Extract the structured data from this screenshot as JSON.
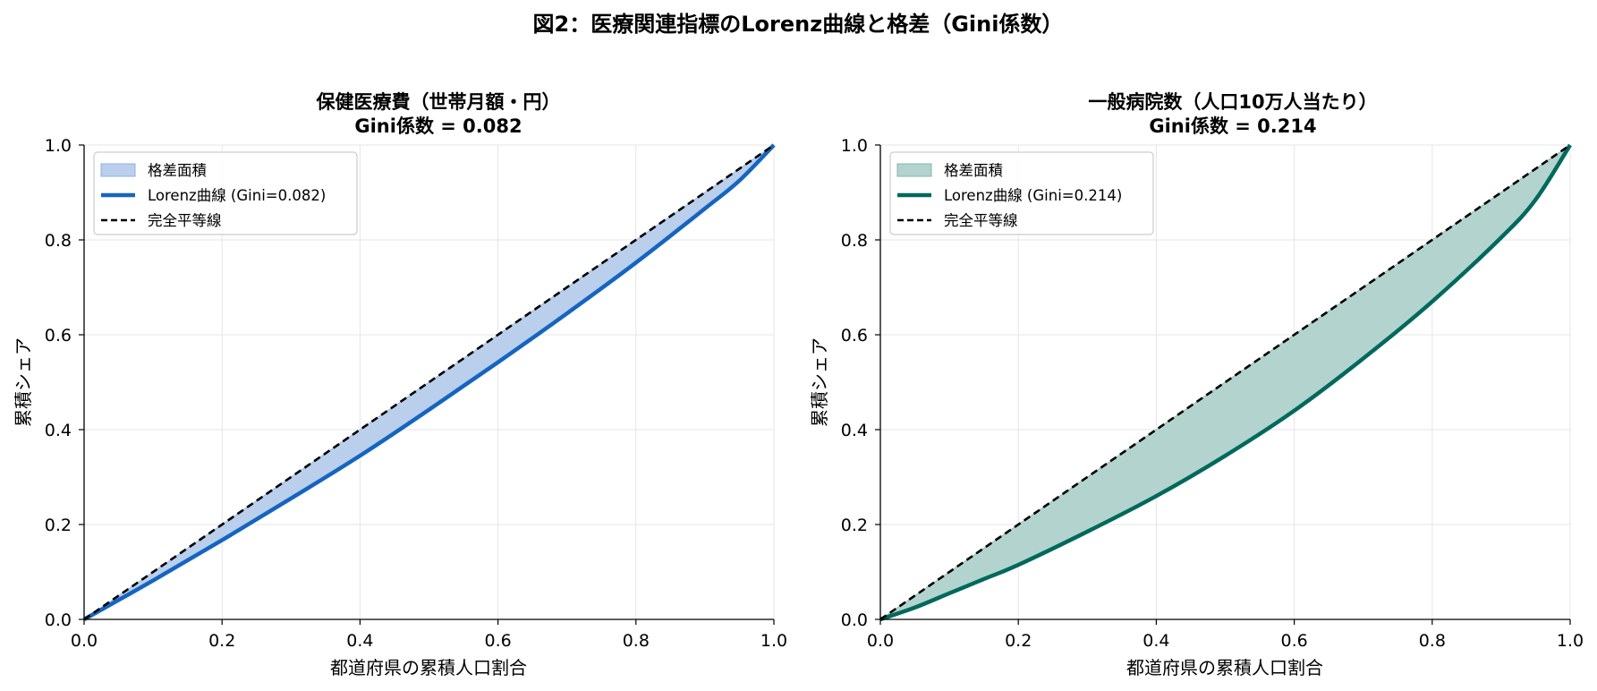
{
  "figure": {
    "title": "図2：医療関連指標のLorenz曲線と格差（Gini係数）"
  },
  "chart_data": [
    {
      "type": "area",
      "title": "保健医療費（世帯月額・円）",
      "subtitle": "Gini係数 = 0.082",
      "xlabel": "都道府県の累積人口割合",
      "ylabel": "累積シェア",
      "xlim": [
        0.0,
        1.0
      ],
      "ylim": [
        0.0,
        1.0
      ],
      "xticks": [
        "0.0",
        "0.2",
        "0.4",
        "0.6",
        "0.8",
        "1.0"
      ],
      "yticks": [
        "0.0",
        "0.2",
        "0.4",
        "0.6",
        "0.8",
        "1.0"
      ],
      "grid": true,
      "legend_position": "upper-left",
      "gini": 0.082,
      "colors": {
        "line": "#1565c0",
        "fill": "#b9cfec",
        "fill_edge": "#8fb0df",
        "equality": "#000000"
      },
      "legend": [
        {
          "kind": "fill",
          "label": "格差面積"
        },
        {
          "kind": "line",
          "label": "Lorenz曲線 (Gini=0.082)"
        },
        {
          "kind": "dash",
          "label": "完全平等線"
        }
      ],
      "series": [
        {
          "name": "Lorenz曲線 (Gini=0.082)",
          "x": [
            0.0,
            0.1,
            0.2,
            0.3,
            0.4,
            0.5,
            0.6,
            0.7,
            0.8,
            0.9,
            0.95,
            1.0
          ],
          "y": [
            0.0,
            0.082,
            0.167,
            0.255,
            0.345,
            0.442,
            0.542,
            0.645,
            0.752,
            0.866,
            0.925,
            1.0
          ]
        },
        {
          "name": "完全平等線",
          "x": [
            0.0,
            1.0
          ],
          "y": [
            0.0,
            1.0
          ]
        }
      ]
    },
    {
      "type": "area",
      "title": "一般病院数（人口10万人当たり）",
      "subtitle": "Gini係数 = 0.214",
      "xlabel": "都道府県の累積人口割合",
      "ylabel": "累積シェア",
      "xlim": [
        0.0,
        1.0
      ],
      "ylim": [
        0.0,
        1.0
      ],
      "xticks": [
        "0.0",
        "0.2",
        "0.4",
        "0.6",
        "0.8",
        "1.0"
      ],
      "yticks": [
        "0.0",
        "0.2",
        "0.4",
        "0.6",
        "0.8",
        "1.0"
      ],
      "grid": true,
      "legend_position": "upper-left",
      "gini": 0.214,
      "colors": {
        "line": "#00695c",
        "fill": "#b3d4ce",
        "fill_edge": "#87b5ad",
        "equality": "#000000"
      },
      "legend": [
        {
          "kind": "fill",
          "label": "格差面積"
        },
        {
          "kind": "line",
          "label": "Lorenz曲線 (Gini=0.214)"
        },
        {
          "kind": "dash",
          "label": "完全平等線"
        }
      ],
      "series": [
        {
          "name": "Lorenz曲線 (Gini=0.214)",
          "x": [
            0.0,
            0.05,
            0.1,
            0.15,
            0.2,
            0.3,
            0.4,
            0.5,
            0.6,
            0.7,
            0.8,
            0.9,
            0.95,
            1.0
          ],
          "y": [
            0.0,
            0.025,
            0.055,
            0.085,
            0.115,
            0.185,
            0.26,
            0.345,
            0.44,
            0.55,
            0.67,
            0.805,
            0.885,
            1.0
          ]
        },
        {
          "name": "完全平等線",
          "x": [
            0.0,
            1.0
          ],
          "y": [
            0.0,
            1.0
          ]
        }
      ]
    }
  ]
}
